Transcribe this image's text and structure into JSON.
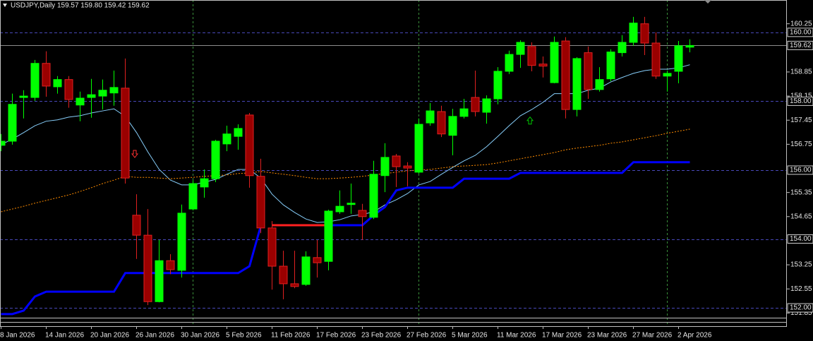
{
  "chart_data": {
    "type": "candlestick",
    "title": "USDJPY,Daily 159.57 159.80 159.42 159.62",
    "categories": [
      "8 Jan 2026",
      null,
      null,
      null,
      "14 Jan 2026",
      null,
      null,
      null,
      "20 Jan 2026",
      null,
      null,
      null,
      "26 Jan 2026",
      null,
      null,
      null,
      "30 Jan 2026",
      null,
      null,
      null,
      "5 Feb 2026",
      null,
      null,
      null,
      "11 Feb 2026",
      null,
      null,
      null,
      "17 Feb 2026",
      null,
      null,
      null,
      "23 Feb 2026",
      null,
      null,
      null,
      "27 Feb 2026",
      null,
      null,
      null,
      "5 Mar 2026",
      null,
      null,
      null,
      "11 Mar 2026",
      null,
      null,
      null,
      "17 Mar 2026",
      null,
      null,
      null,
      "23 Mar 2026",
      null,
      null,
      null,
      "27 Mar 2026",
      null,
      null,
      null,
      "2 Apr 2026",
      null
    ],
    "open": [
      156.72,
      156.84,
      158.11,
      158.11,
      159.1,
      158.42,
      158.63,
      157.89,
      158.11,
      158.15,
      158.24,
      158.38,
      154.69,
      154.11,
      152.18,
      153.37,
      153.09,
      154.87,
      155.51,
      155.75,
      156.76,
      156.98,
      157.6,
      155.82,
      154.32,
      153.21,
      152.7,
      152.68,
      153.46,
      153.35,
      154.79,
      155.0,
      154.83,
      154.63,
      155.84,
      156.41,
      156.12,
      155.94,
      157.37,
      157.7,
      157.01,
      157.56,
      158.11,
      157.68,
      158.07,
      158.87,
      159.36,
      159.59,
      159.08,
      158.54,
      159.75,
      157.76,
      159.41,
      158.34,
      158.65,
      159.41,
      159.71,
      160.25,
      159.69,
      158.73,
      158.87,
      159.57
    ],
    "high": [
      157.05,
      158.22,
      158.32,
      159.2,
      159.45,
      158.73,
      158.73,
      158.28,
      158.65,
      158.63,
      158.89,
      159.24,
      155.3,
      154.87,
      153.97,
      153.56,
      155.0,
      155.71,
      156.02,
      156.88,
      157.29,
      157.33,
      157.66,
      156.33,
      154.52,
      153.66,
      153.66,
      153.64,
      153.97,
      154.85,
      155.41,
      155.61,
      155.02,
      156.27,
      156.78,
      156.47,
      156.23,
      157.5,
      157.95,
      157.87,
      157.78,
      158.07,
      158.89,
      158.17,
      158.99,
      159.47,
      159.77,
      159.71,
      159.3,
      159.88,
      159.86,
      159.28,
      159.59,
      158.99,
      159.51,
      159.92,
      160.45,
      160.45,
      160.0,
      158.89,
      159.75,
      159.8
    ],
    "low": [
      156.55,
      156.74,
      157.5,
      158.01,
      158.13,
      158.22,
      157.81,
      157.42,
      157.52,
      157.76,
      157.87,
      155.61,
      153.42,
      152.08,
      152.16,
      152.98,
      152.88,
      154.83,
      155.2,
      155.65,
      156.55,
      156.59,
      155.49,
      154.17,
      152.53,
      152.25,
      152.57,
      152.64,
      152.88,
      153.09,
      154.73,
      154.73,
      153.97,
      154.58,
      155.36,
      155.51,
      155.53,
      155.9,
      157.29,
      156.96,
      156.43,
      157.5,
      157.56,
      157.35,
      157.91,
      158.79,
      158.97,
      158.87,
      158.69,
      158.52,
      157.5,
      157.56,
      158.07,
      158.28,
      158.58,
      159.3,
      159.61,
      159.34,
      158.65,
      158.28,
      158.52,
      159.42
    ],
    "close": [
      156.84,
      157.91,
      158.15,
      159.1,
      158.44,
      158.63,
      158.05,
      158.09,
      158.19,
      158.32,
      158.4,
      155.77,
      154.11,
      152.18,
      153.37,
      153.11,
      154.75,
      155.61,
      155.75,
      156.84,
      157.05,
      157.21,
      155.84,
      154.32,
      153.21,
      152.7,
      152.62,
      153.48,
      153.31,
      154.81,
      154.95,
      155.04,
      154.65,
      155.88,
      156.37,
      156.1,
      156.06,
      157.33,
      157.72,
      157.05,
      157.56,
      157.78,
      157.7,
      158.07,
      158.87,
      159.36,
      159.71,
      159.04,
      159.02,
      159.71,
      157.76,
      159.24,
      158.34,
      158.63,
      159.43,
      159.71,
      160.27,
      159.69,
      158.73,
      158.81,
      159.61,
      159.62
    ],
    "up_color": "#00ff00",
    "down_color": "#9a0000",
    "down_border": "#e02020",
    "overlays": [
      {
        "color": "#87cefa",
        "width": 1,
        "dashed": false,
        "values": [
          156.74,
          156.9,
          157.09,
          157.29,
          157.42,
          157.46,
          157.54,
          157.58,
          157.66,
          157.72,
          157.78,
          157.56,
          157.09,
          156.53,
          156.02,
          155.71,
          155.57,
          155.57,
          155.65,
          155.73,
          155.88,
          156.02,
          156.02,
          155.77,
          155.3,
          154.99,
          154.77,
          154.58,
          154.48,
          154.5,
          154.56,
          154.67,
          154.71,
          154.79,
          154.99,
          155.14,
          155.32,
          155.57,
          155.67,
          155.88,
          156.08,
          156.27,
          156.43,
          156.68,
          156.98,
          157.29,
          157.58,
          157.76,
          157.97,
          158.22,
          158.22,
          158.22,
          158.32,
          158.38,
          158.56,
          158.69,
          158.81,
          158.89,
          158.93,
          158.93,
          158.97,
          159.06
        ]
      },
      {
        "color": "#ff8c00",
        "width": 1,
        "dashed": true,
        "values": [
          154.79,
          154.87,
          154.95,
          155.04,
          155.12,
          155.2,
          155.28,
          155.38,
          155.49,
          155.61,
          155.71,
          155.82,
          155.79,
          155.79,
          155.77,
          155.75,
          155.77,
          155.79,
          155.82,
          155.84,
          155.86,
          155.9,
          155.92,
          155.96,
          155.92,
          155.88,
          155.84,
          155.79,
          155.75,
          155.75,
          155.77,
          155.79,
          155.82,
          155.86,
          155.9,
          155.94,
          155.98,
          156.0,
          156.02,
          156.06,
          156.1,
          156.12,
          156.14,
          156.16,
          156.21,
          156.27,
          156.33,
          156.39,
          156.45,
          156.51,
          156.59,
          156.64,
          156.68,
          156.72,
          156.78,
          156.82,
          156.88,
          156.94,
          157.0,
          157.07,
          157.13,
          157.19
        ]
      },
      {
        "color": "#0000ff",
        "width": 3,
        "dashed": false,
        "values": [
          151.82,
          151.82,
          151.92,
          152.33,
          152.47,
          152.47,
          152.47,
          152.47,
          152.47,
          152.47,
          152.47,
          153.01,
          153.01,
          153.01,
          153.01,
          153.01,
          153.01,
          153.01,
          153.01,
          153.01,
          153.01,
          153.01,
          153.21,
          154.38,
          null,
          null,
          null,
          null,
          null,
          154.4,
          154.4,
          154.4,
          154.4,
          154.69,
          154.93,
          155.41,
          155.49,
          155.49,
          155.49,
          155.49,
          155.49,
          155.75,
          155.75,
          155.75,
          155.75,
          155.75,
          155.92,
          155.92,
          155.92,
          155.92,
          155.92,
          155.92,
          155.92,
          155.92,
          155.92,
          155.92,
          156.23,
          156.23,
          156.23,
          156.23,
          156.23,
          156.23
        ]
      },
      {
        "color": "#ff2020",
        "width": 3,
        "dashed": false,
        "values": [
          null,
          null,
          null,
          null,
          null,
          null,
          null,
          null,
          null,
          null,
          null,
          null,
          null,
          null,
          null,
          null,
          null,
          null,
          null,
          null,
          null,
          null,
          null,
          null,
          154.4,
          154.4,
          154.4,
          154.4,
          154.4,
          154.4,
          null,
          null,
          null,
          null,
          null,
          null,
          null,
          null,
          null,
          null,
          null,
          null,
          null,
          null,
          null,
          null,
          null,
          null,
          null,
          null,
          null,
          null,
          null,
          null,
          null,
          null,
          null,
          null,
          null,
          null,
          null,
          null
        ]
      }
    ],
    "markers": [
      {
        "color": "#ff3030",
        "shape": "down",
        "values": [
          null,
          null,
          null,
          null,
          null,
          null,
          null,
          null,
          null,
          null,
          null,
          null,
          156.47,
          null,
          null,
          null,
          null,
          null,
          null,
          null,
          null,
          null,
          null,
          null,
          null,
          null,
          null,
          null,
          null,
          null,
          null,
          null,
          null,
          null,
          null,
          null,
          null,
          null,
          null,
          null,
          null,
          null,
          null,
          null,
          null,
          null,
          null,
          null,
          null,
          null,
          null,
          null,
          null,
          null,
          null,
          null,
          null,
          null,
          null,
          null,
          null,
          null
        ]
      },
      {
        "color": "#00c800",
        "shape": "up",
        "values": [
          null,
          null,
          null,
          null,
          null,
          null,
          null,
          null,
          null,
          null,
          null,
          null,
          null,
          null,
          null,
          null,
          null,
          null,
          null,
          null,
          null,
          null,
          null,
          null,
          null,
          null,
          null,
          null,
          null,
          null,
          null,
          null,
          null,
          null,
          null,
          null,
          null,
          null,
          null,
          null,
          null,
          null,
          null,
          null,
          null,
          null,
          null,
          157.44,
          null,
          null,
          null,
          null,
          null,
          null,
          null,
          null,
          null,
          null,
          null,
          null,
          null,
          null
        ]
      }
    ],
    "levels": [
      {
        "value": 160,
        "label": "160.00"
      },
      {
        "value": 158,
        "label": "158.00"
      },
      {
        "value": 156,
        "label": "156.00"
      },
      {
        "value": 154,
        "label": "154.00"
      },
      {
        "value": 152,
        "label": "152.00"
      }
    ],
    "level_color": "#4848b8",
    "current_price": 159.62,
    "ylim": [
      151.55,
      160.94
    ],
    "yticks": [
      160.25,
      158.85,
      158.15,
      157.45,
      156.75,
      155.35,
      154.65,
      153.25,
      152.55,
      151.85
    ],
    "grid": false
  }
}
